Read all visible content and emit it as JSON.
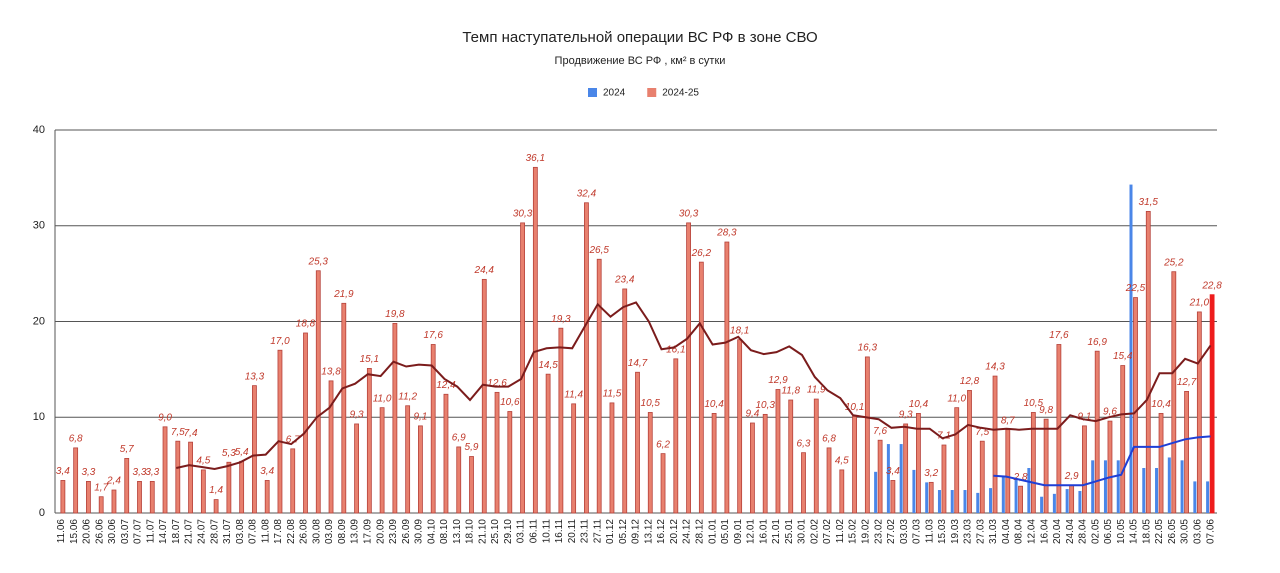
{
  "chart_data": {
    "type": "bar",
    "title": "Темп наступательной операции ВС РФ в зоне СВО",
    "subtitle": "Продвижение ВС РФ , км² в сутки",
    "categories": [
      "11.06",
      "15.06",
      "20.06",
      "26.06",
      "30.06",
      "03.07",
      "07.07",
      "11.07",
      "14.07",
      "18.07",
      "21.07",
      "24.07",
      "28.07",
      "31.07",
      "03.08",
      "07.08",
      "11.08",
      "17.08",
      "22.08",
      "26.08",
      "30.08",
      "03.09",
      "08.09",
      "13.09",
      "17.09",
      "20.09",
      "23.09",
      "26.09",
      "30.09",
      "04.10",
      "08.10",
      "13.10",
      "18.10",
      "21.10",
      "25.10",
      "29.10",
      "03.11",
      "06.11",
      "10.11",
      "16.11",
      "20.11",
      "23.11",
      "27.11",
      "01.12",
      "05.12",
      "09.12",
      "13.12",
      "16.12",
      "20.12",
      "24.12",
      "28.12",
      "01.01",
      "05.01",
      "09.01",
      "12.01",
      "16.01",
      "21.01",
      "25.01",
      "30.01",
      "02.02",
      "07.02",
      "11.02",
      "15.02",
      "19.02",
      "23.02",
      "27.02",
      "03.03",
      "07.03",
      "11.03",
      "15.03",
      "19.03",
      "23.03",
      "27.03",
      "31.03",
      "04.04",
      "08.04",
      "12.04",
      "16.04",
      "20.04",
      "24.04",
      "28.04",
      "02.05",
      "06.05",
      "10.05",
      "14.05",
      "18.05",
      "22.05",
      "26.05",
      "30.05",
      "03.06",
      "07.06"
    ],
    "series": [
      {
        "name": "2024",
        "color": "#4a86e8",
        "values": [
          null,
          null,
          null,
          null,
          null,
          null,
          null,
          null,
          null,
          null,
          null,
          null,
          null,
          null,
          null,
          null,
          null,
          null,
          null,
          null,
          null,
          null,
          null,
          null,
          null,
          null,
          null,
          null,
          null,
          null,
          null,
          null,
          null,
          null,
          null,
          null,
          null,
          null,
          null,
          null,
          null,
          null,
          null,
          null,
          null,
          null,
          null,
          null,
          null,
          null,
          null,
          null,
          null,
          null,
          null,
          null,
          null,
          null,
          null,
          null,
          null,
          null,
          null,
          null,
          4.3,
          7.2,
          7.2,
          4.5,
          3.2,
          2.4,
          2.4,
          2.4,
          2.1,
          2.6,
          3.8,
          3.5,
          4.7,
          1.7,
          2.0,
          2.5,
          2.3,
          5.5,
          5.5,
          5.5,
          34.3,
          4.7,
          4.7,
          5.8,
          5.5,
          3.3,
          3.3
        ]
      },
      {
        "name": "2024-25",
        "color": "#e8806e",
        "stroke": "#b5413a",
        "highlight_color": "#ee1c1c",
        "values": [
          3.4,
          6.8,
          3.3,
          1.7,
          2.4,
          5.7,
          3.3,
          3.3,
          9.0,
          7.5,
          7.4,
          4.5,
          1.4,
          5.3,
          5.4,
          13.3,
          3.4,
          17.0,
          6.7,
          18.8,
          25.3,
          13.8,
          21.9,
          9.3,
          15.1,
          11.0,
          19.8,
          11.2,
          9.1,
          17.6,
          12.4,
          6.9,
          5.9,
          24.4,
          12.6,
          10.6,
          30.3,
          36.1,
          14.5,
          19.3,
          11.4,
          32.4,
          26.5,
          11.5,
          23.4,
          14.7,
          10.5,
          6.2,
          16.1,
          30.3,
          26.2,
          10.4,
          28.3,
          18.1,
          9.4,
          10.3,
          12.9,
          11.8,
          6.3,
          11.9,
          6.8,
          4.5,
          10.1,
          16.3,
          7.6,
          3.4,
          9.3,
          10.4,
          3.2,
          7.1,
          11.0,
          12.8,
          7.5,
          14.3,
          8.7,
          2.8,
          10.5,
          9.8,
          17.6,
          2.9,
          9.1,
          16.9,
          9.6,
          15.4,
          22.5,
          31.5,
          10.4,
          25.2,
          12.7,
          21.0,
          22.8
        ],
        "value_labels": [
          "3,4",
          "6,8",
          "3,3",
          "1,7",
          "2,4",
          "5,7",
          "3,3",
          "3,3",
          "9,0",
          "7,5",
          "7,4",
          "4,5",
          "1,4",
          "5,3",
          "5,4",
          "13,3",
          "3,4",
          "17,0",
          "6,7",
          "18,8",
          "25,3",
          "13,8",
          "21,9",
          "9,3",
          "15,1",
          "11,0",
          "19,8",
          "11,2",
          "9,1",
          "17,6",
          "12,4",
          "6,9",
          "5,9",
          "24,4",
          "12,6",
          "10,6",
          "30,3",
          "36,1",
          "14,5",
          "19,3",
          "11,4",
          "32,4",
          "26,5",
          "11,5",
          "23,4",
          "14,7",
          "10,5",
          "6,2",
          "16,1",
          "30,3",
          "26,2",
          "10,4",
          "28,3",
          "18,1",
          "9,4",
          "10,3",
          "12,9",
          "11,8",
          "6,3",
          "11,9",
          "6,8",
          "4,5",
          "10,1",
          "16,3",
          "7,6",
          "3,4",
          "9,3",
          "10,4",
          "3,2",
          "7,1",
          "11,0",
          "12,8",
          "7,5",
          "14,3",
          "8,7",
          "2,8",
          "10,5",
          "9,8",
          "17,6",
          "2,9",
          "9,1",
          "16,9",
          "9,6",
          "15,4",
          "22,5",
          "31,5",
          "10,4",
          "25,2",
          "12,7",
          "21,0",
          "22,8"
        ]
      }
    ],
    "lines": [
      {
        "color": "#7b1c1c",
        "values": [
          null,
          null,
          null,
          null,
          null,
          null,
          null,
          null,
          null,
          4.7,
          5.0,
          4.8,
          4.6,
          4.9,
          5.3,
          6.0,
          6.1,
          7.5,
          7.2,
          8.3,
          10.0,
          11.0,
          13.0,
          13.5,
          14.5,
          14.3,
          15.8,
          15.3,
          15.5,
          15.4,
          14.0,
          13.2,
          11.8,
          13.4,
          13.2,
          13.2,
          14.0,
          16.8,
          17.2,
          17.3,
          17.2,
          19.5,
          21.8,
          20.5,
          21.5,
          22.0,
          20.0,
          17.1,
          17.3,
          18.2,
          19.8,
          17.6,
          17.8,
          18.4,
          17.0,
          16.6,
          16.8,
          17.4,
          16.5,
          14.2,
          12.8,
          12.0,
          10.2,
          10.0,
          9.8,
          8.9,
          9.0,
          8.8,
          8.8,
          7.8,
          8.2,
          9.2,
          8.9,
          8.7,
          8.8,
          8.7,
          8.8,
          8.8,
          8.8,
          10.2,
          9.8,
          9.6,
          10.0,
          10.3,
          10.4,
          11.8,
          14.6,
          14.6,
          16.1,
          15.6,
          17.5
        ]
      },
      {
        "color": "#1f3fd6",
        "values": [
          null,
          null,
          null,
          null,
          null,
          null,
          null,
          null,
          null,
          null,
          null,
          null,
          null,
          null,
          null,
          null,
          null,
          null,
          null,
          null,
          null,
          null,
          null,
          null,
          null,
          null,
          null,
          null,
          null,
          null,
          null,
          null,
          null,
          null,
          null,
          null,
          null,
          null,
          null,
          null,
          null,
          null,
          null,
          null,
          null,
          null,
          null,
          null,
          null,
          null,
          null,
          null,
          null,
          null,
          null,
          null,
          null,
          null,
          null,
          null,
          null,
          null,
          null,
          null,
          null,
          null,
          null,
          null,
          null,
          null,
          null,
          null,
          null,
          3.9,
          3.8,
          3.5,
          3.2,
          2.9,
          2.9,
          2.9,
          2.9,
          3.3,
          3.7,
          4.0,
          6.9,
          6.9,
          6.9,
          7.3,
          7.7,
          7.9,
          8.0
        ]
      }
    ],
    "ylim": [
      0,
      40
    ],
    "yticks": [
      0,
      10,
      20,
      30,
      40
    ],
    "grid": true,
    "legend": "top"
  }
}
